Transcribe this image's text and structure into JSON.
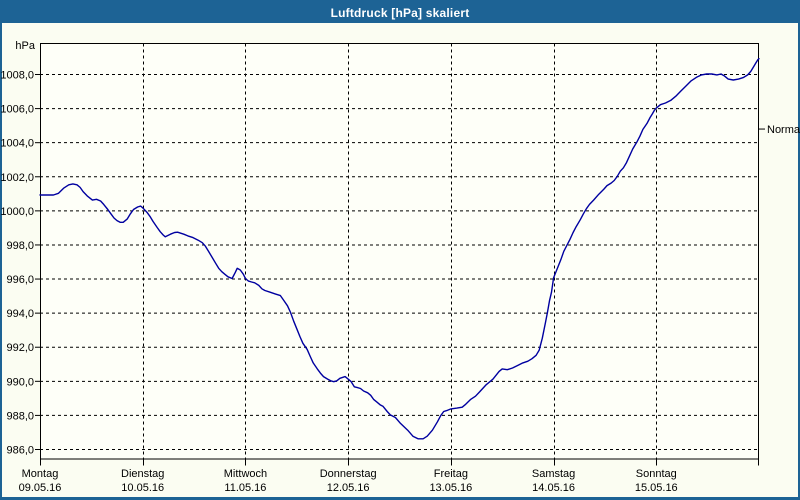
{
  "window": {
    "title": "Luftdruck [hPa] skaliert"
  },
  "colors": {
    "title_bar": "#1d6395",
    "window_border": "#1d6395",
    "background": "#fbfdf2",
    "plot_background": "#fefff8",
    "grid": "#000000",
    "axis": "#000000",
    "label_text": "#000000",
    "title_text": "#ffffff",
    "curve": "#0000a0"
  },
  "chart_data": {
    "type": "line",
    "title": "Luftdruck [hPa] skaliert",
    "y_unit_label": "hPa",
    "ylabel": "hPa",
    "xlabel": "",
    "grid": "dashed",
    "legend_position": "none",
    "ylim": [
      985.3,
      1009.8
    ],
    "xlim_days": [
      0,
      7
    ],
    "y_ticks": [
      {
        "value": 1008,
        "label": "1008,0"
      },
      {
        "value": 1006,
        "label": "1006,0"
      },
      {
        "value": 1004,
        "label": "1004,0"
      },
      {
        "value": 1002,
        "label": "1002,0"
      },
      {
        "value": 1000,
        "label": "1000,0"
      },
      {
        "value": 998,
        "label": "998,0"
      },
      {
        "value": 996,
        "label": "996,0"
      },
      {
        "value": 994,
        "label": "994,0"
      },
      {
        "value": 992,
        "label": "992,0"
      },
      {
        "value": 990,
        "label": "990,0"
      },
      {
        "value": 988,
        "label": "988,0"
      },
      {
        "value": 986,
        "label": "986,0"
      }
    ],
    "x_days": [
      {
        "day": "Montag",
        "date": "09.05.16"
      },
      {
        "day": "Dienstag",
        "date": "10.05.16"
      },
      {
        "day": "Mittwoch",
        "date": "11.05.16"
      },
      {
        "day": "Donnerstag",
        "date": "12.05.16"
      },
      {
        "day": "Freitag",
        "date": "13.05.16"
      },
      {
        "day": "Samstag",
        "date": "14.05.16"
      },
      {
        "day": "Sonntag",
        "date": "15.05.16"
      }
    ],
    "normal_marker": {
      "label": "Normal",
      "value_hpa": 1004.8
    },
    "series": [
      {
        "name": "Luftdruck",
        "unit": "hPa",
        "points_t_days_v_hpa": [
          [
            0.0,
            1000.9
          ],
          [
            0.07,
            1000.9
          ],
          [
            0.13,
            1000.9
          ],
          [
            0.18,
            1001.0
          ],
          [
            0.23,
            1001.3
          ],
          [
            0.28,
            1001.5
          ],
          [
            0.32,
            1001.55
          ],
          [
            0.36,
            1001.5
          ],
          [
            0.39,
            1001.35
          ],
          [
            0.42,
            1001.1
          ],
          [
            0.46,
            1000.85
          ],
          [
            0.51,
            1000.6
          ],
          [
            0.55,
            1000.65
          ],
          [
            0.59,
            1000.55
          ],
          [
            0.62,
            1000.35
          ],
          [
            0.66,
            1000.05
          ],
          [
            0.69,
            999.8
          ],
          [
            0.72,
            999.55
          ],
          [
            0.75,
            999.4
          ],
          [
            0.78,
            999.3
          ],
          [
            0.81,
            999.3
          ],
          [
            0.85,
            999.5
          ],
          [
            0.88,
            999.8
          ],
          [
            0.91,
            1000.05
          ],
          [
            0.95,
            1000.2
          ],
          [
            0.98,
            1000.25
          ],
          [
            1.0,
            1000.15
          ],
          [
            1.04,
            999.9
          ],
          [
            1.07,
            999.65
          ],
          [
            1.1,
            999.35
          ],
          [
            1.14,
            999.0
          ],
          [
            1.17,
            998.75
          ],
          [
            1.2,
            998.55
          ],
          [
            1.22,
            998.45
          ],
          [
            1.27,
            998.6
          ],
          [
            1.31,
            998.7
          ],
          [
            1.34,
            998.72
          ],
          [
            1.4,
            998.6
          ],
          [
            1.44,
            998.5
          ],
          [
            1.49,
            998.4
          ],
          [
            1.54,
            998.25
          ],
          [
            1.58,
            998.1
          ],
          [
            1.61,
            997.9
          ],
          [
            1.64,
            997.6
          ],
          [
            1.68,
            997.2
          ],
          [
            1.71,
            996.9
          ],
          [
            1.74,
            996.6
          ],
          [
            1.77,
            996.4
          ],
          [
            1.8,
            996.25
          ],
          [
            1.83,
            996.1
          ],
          [
            1.87,
            996.0
          ],
          [
            1.9,
            996.35
          ],
          [
            1.92,
            996.6
          ],
          [
            1.95,
            996.5
          ],
          [
            1.98,
            996.25
          ],
          [
            2.0,
            996.0
          ],
          [
            2.03,
            995.85
          ],
          [
            2.06,
            995.8
          ],
          [
            2.09,
            995.75
          ],
          [
            2.13,
            995.6
          ],
          [
            2.16,
            995.4
          ],
          [
            2.19,
            995.3
          ],
          [
            2.24,
            995.2
          ],
          [
            2.29,
            995.1
          ],
          [
            2.34,
            995.0
          ],
          [
            2.37,
            994.75
          ],
          [
            2.41,
            994.4
          ],
          [
            2.44,
            994.0
          ],
          [
            2.47,
            993.5
          ],
          [
            2.5,
            993.05
          ],
          [
            2.53,
            992.6
          ],
          [
            2.56,
            992.2
          ],
          [
            2.6,
            991.85
          ],
          [
            2.63,
            991.45
          ],
          [
            2.66,
            991.05
          ],
          [
            2.7,
            990.7
          ],
          [
            2.73,
            990.45
          ],
          [
            2.76,
            990.25
          ],
          [
            2.8,
            990.1
          ],
          [
            2.83,
            990.0
          ],
          [
            2.86,
            989.95
          ],
          [
            2.89,
            990.0
          ],
          [
            2.92,
            990.15
          ],
          [
            2.97,
            990.25
          ],
          [
            3.0,
            990.1
          ],
          [
            3.03,
            989.95
          ],
          [
            3.06,
            989.65
          ],
          [
            3.09,
            989.6
          ],
          [
            3.12,
            989.55
          ],
          [
            3.15,
            989.4
          ],
          [
            3.19,
            989.3
          ],
          [
            3.22,
            989.15
          ],
          [
            3.25,
            988.9
          ],
          [
            3.28,
            988.75
          ],
          [
            3.31,
            988.6
          ],
          [
            3.34,
            988.5
          ],
          [
            3.38,
            988.2
          ],
          [
            3.41,
            988.0
          ],
          [
            3.46,
            987.85
          ],
          [
            3.51,
            987.5
          ],
          [
            3.58,
            987.1
          ],
          [
            3.63,
            986.75
          ],
          [
            3.68,
            986.6
          ],
          [
            3.73,
            986.6
          ],
          [
            3.77,
            986.75
          ],
          [
            3.82,
            987.1
          ],
          [
            3.87,
            987.6
          ],
          [
            3.9,
            987.95
          ],
          [
            3.93,
            988.2
          ],
          [
            3.96,
            988.25
          ],
          [
            4.0,
            988.35
          ],
          [
            4.06,
            988.4
          ],
          [
            4.11,
            988.45
          ],
          [
            4.14,
            988.6
          ],
          [
            4.19,
            988.9
          ],
          [
            4.24,
            989.1
          ],
          [
            4.28,
            989.35
          ],
          [
            4.34,
            989.75
          ],
          [
            4.41,
            990.1
          ],
          [
            4.47,
            990.55
          ],
          [
            4.5,
            990.7
          ],
          [
            4.55,
            990.65
          ],
          [
            4.6,
            990.75
          ],
          [
            4.65,
            990.9
          ],
          [
            4.7,
            991.05
          ],
          [
            4.75,
            991.15
          ],
          [
            4.79,
            991.3
          ],
          [
            4.83,
            991.5
          ],
          [
            4.86,
            991.8
          ],
          [
            4.89,
            992.5
          ],
          [
            4.92,
            993.4
          ],
          [
            4.94,
            994.0
          ],
          [
            4.96,
            994.7
          ],
          [
            4.98,
            995.2
          ],
          [
            5.0,
            996.05
          ],
          [
            5.04,
            996.65
          ],
          [
            5.07,
            997.1
          ],
          [
            5.1,
            997.6
          ],
          [
            5.13,
            997.95
          ],
          [
            5.16,
            998.3
          ],
          [
            5.19,
            998.7
          ],
          [
            5.22,
            999.05
          ],
          [
            5.26,
            999.45
          ],
          [
            5.29,
            999.8
          ],
          [
            5.32,
            1000.1
          ],
          [
            5.35,
            1000.35
          ],
          [
            5.39,
            1000.6
          ],
          [
            5.44,
            1000.95
          ],
          [
            5.49,
            1001.25
          ],
          [
            5.52,
            1001.45
          ],
          [
            5.56,
            1001.6
          ],
          [
            5.59,
            1001.75
          ],
          [
            5.62,
            1002.0
          ],
          [
            5.65,
            1002.3
          ],
          [
            5.68,
            1002.5
          ],
          [
            5.71,
            1002.8
          ],
          [
            5.74,
            1003.2
          ],
          [
            5.77,
            1003.6
          ],
          [
            5.81,
            1004.0
          ],
          [
            5.84,
            1004.35
          ],
          [
            5.87,
            1004.75
          ],
          [
            5.91,
            1005.1
          ],
          [
            5.94,
            1005.45
          ],
          [
            5.96,
            1005.65
          ],
          [
            5.98,
            1005.85
          ],
          [
            6.0,
            1006.0
          ],
          [
            6.04,
            1006.2
          ],
          [
            6.09,
            1006.3
          ],
          [
            6.14,
            1006.45
          ],
          [
            6.19,
            1006.7
          ],
          [
            6.24,
            1007.0
          ],
          [
            6.29,
            1007.3
          ],
          [
            6.34,
            1007.6
          ],
          [
            6.39,
            1007.8
          ],
          [
            6.44,
            1007.95
          ],
          [
            6.49,
            1008.0
          ],
          [
            6.54,
            1008.0
          ],
          [
            6.59,
            1007.95
          ],
          [
            6.63,
            1008.0
          ],
          [
            6.66,
            1007.9
          ],
          [
            6.7,
            1007.7
          ],
          [
            6.75,
            1007.65
          ],
          [
            6.8,
            1007.7
          ],
          [
            6.85,
            1007.8
          ],
          [
            6.89,
            1007.95
          ],
          [
            6.92,
            1008.15
          ],
          [
            6.95,
            1008.45
          ],
          [
            6.97,
            1008.65
          ],
          [
            6.99,
            1008.85
          ],
          [
            7.0,
            1008.9
          ]
        ]
      }
    ]
  }
}
